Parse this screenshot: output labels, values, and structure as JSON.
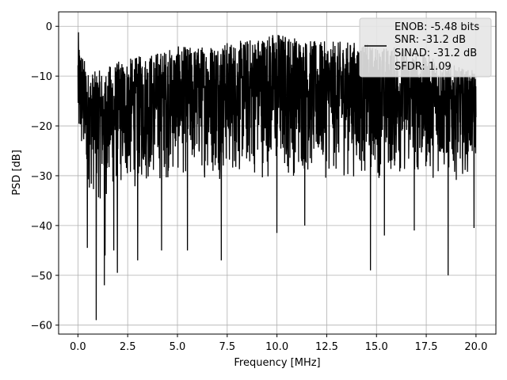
{
  "chart_data": {
    "type": "line",
    "title": "",
    "xlabel": "Frequency [MHz]",
    "ylabel": "PSD [dB]",
    "xlim": [
      -0.97,
      21.0
    ],
    "ylim": [
      -61.8,
      2.9
    ],
    "xticks": [
      0.0,
      2.5,
      5.0,
      7.5,
      10.0,
      12.5,
      15.0,
      17.5,
      20.0
    ],
    "xtick_labels": [
      "0.0",
      "2.5",
      "5.0",
      "7.5",
      "10.0",
      "12.5",
      "15.0",
      "17.5",
      "20.0"
    ],
    "yticks": [
      0,
      -10,
      -20,
      -30,
      -40,
      -50,
      -60
    ],
    "ytick_labels": [
      "0",
      "−10",
      "−20",
      "−30",
      "−40",
      "−50",
      "−60"
    ],
    "grid": true,
    "line_color": "#000000",
    "legend": {
      "position": "top-right",
      "entries": [
        "ENOB: -5.48 bits",
        "SNR: -31.2 dB",
        "SINAD: -31.2 dB",
        "SFDR: 1.09"
      ]
    },
    "series": [
      {
        "x_start": 0.0,
        "x_end": 20.0,
        "approximate_envelope": {
          "x": [
            0,
            0.5,
            1,
            2,
            3,
            4,
            5,
            6,
            7,
            8,
            9,
            10,
            11,
            12,
            13,
            14,
            15,
            16,
            17,
            18,
            19,
            20
          ],
          "upper": [
            -2,
            -9,
            -9,
            -7,
            -6,
            -5,
            -4,
            -4,
            -3,
            -3,
            -2,
            -1,
            -2,
            -3,
            -3,
            -3,
            -4,
            -4,
            -5,
            -6,
            -8,
            -9
          ],
          "lower": [
            -28,
            -33,
            -36,
            -34,
            -33,
            -32,
            -31,
            -31,
            -31,
            -31,
            -31,
            -31,
            -31,
            -31,
            -31,
            -31,
            -31,
            -31,
            -31,
            -31,
            -31,
            -29
          ]
        },
        "spikes_down": [
          {
            "x": 0.92,
            "y": -59
          },
          {
            "x": 1.33,
            "y": -52
          },
          {
            "x": 1.98,
            "y": -49.5
          },
          {
            "x": 0.47,
            "y": -44.5
          },
          {
            "x": 1.36,
            "y": -46
          },
          {
            "x": 1.8,
            "y": -45
          },
          {
            "x": 3.0,
            "y": -47
          },
          {
            "x": 4.2,
            "y": -45
          },
          {
            "x": 5.5,
            "y": -45
          },
          {
            "x": 7.2,
            "y": -47
          },
          {
            "x": 10.0,
            "y": -41.5
          },
          {
            "x": 14.7,
            "y": -49
          },
          {
            "x": 15.4,
            "y": -42
          },
          {
            "x": 18.6,
            "y": -50
          },
          {
            "x": 19.9,
            "y": -40.5
          },
          {
            "x": 11.4,
            "y": -40
          },
          {
            "x": 16.9,
            "y": -41
          }
        ],
        "spikes_up": [
          {
            "x": 0.03,
            "y": -1.2
          }
        ]
      }
    ]
  }
}
